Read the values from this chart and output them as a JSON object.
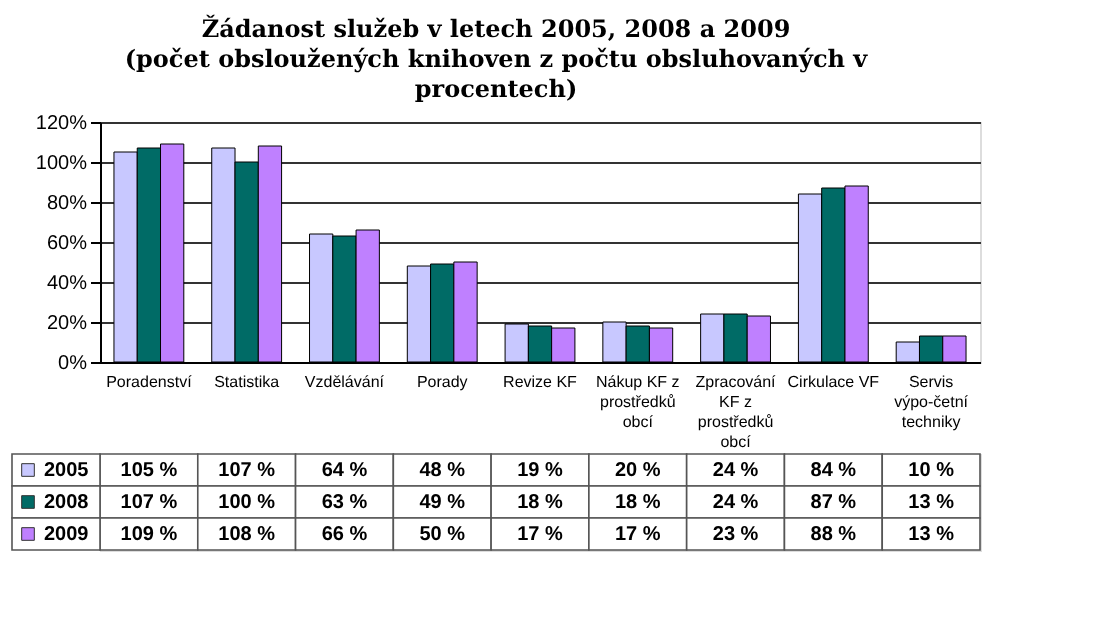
{
  "chart_data": {
    "type": "bar",
    "title": "Žádanost služeb v letech 2005, 2008 a 2009",
    "subtitle": "(počet obsloužených knihoven z počtu obsluhovaných v procentech)",
    "categories": [
      "Poradenství",
      "Statistika",
      "Vzdělávání",
      "Porady",
      "Revize KF",
      "Nákup KF z prostředků obcí",
      "Zpracování KF z prostředků obcí",
      "Cirkulace VF",
      "Servis výpo-četní techniky"
    ],
    "series": [
      {
        "name": "2005",
        "color": "#c8c8ff",
        "values": [
          105,
          107,
          64,
          48,
          19,
          20,
          24,
          84,
          10
        ],
        "value_labels": [
          "105 %",
          "107 %",
          "64 %",
          "48 %",
          "19 %",
          "20 %",
          "24 %",
          "84 %",
          "10 %"
        ]
      },
      {
        "name": "2008",
        "color": "#006b66",
        "values": [
          107,
          100,
          63,
          49,
          18,
          18,
          24,
          87,
          13
        ],
        "value_labels": [
          "107 %",
          "100 %",
          "63 %",
          "49 %",
          "18 %",
          "18 %",
          "24 %",
          "87 %",
          "13 %"
        ]
      },
      {
        "name": "2009",
        "color": "#bf80ff",
        "values": [
          109,
          108,
          66,
          50,
          17,
          17,
          23,
          88,
          13
        ],
        "value_labels": [
          "109 %",
          "108 %",
          "66 %",
          "50 %",
          "17 %",
          "17 %",
          "23 %",
          "88 %",
          "13 %"
        ]
      }
    ],
    "ylim": [
      0,
      120
    ],
    "yticks": [
      {
        "value": 0,
        "label": "0%"
      },
      {
        "value": 20,
        "label": "20%"
      },
      {
        "value": 40,
        "label": "40%"
      },
      {
        "value": 60,
        "label": "60%"
      },
      {
        "value": 80,
        "label": "80%"
      },
      {
        "value": 100,
        "label": "100%"
      },
      {
        "value": 120,
        "label": "120%"
      }
    ],
    "grid": "y",
    "legend": "bottom left"
  }
}
